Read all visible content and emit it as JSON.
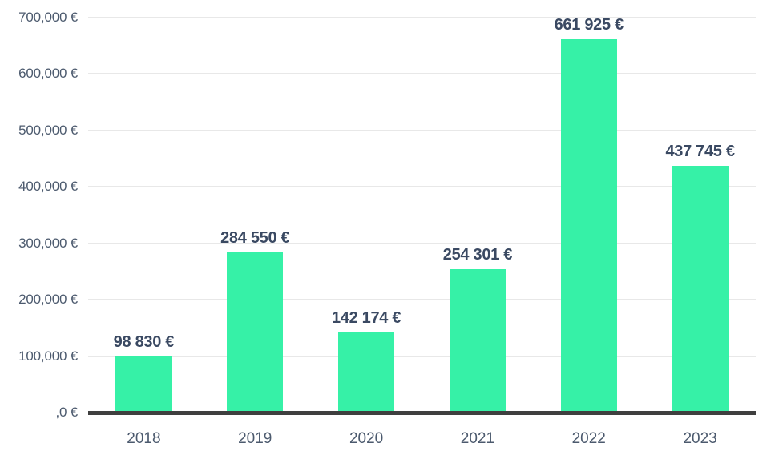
{
  "chart_data": {
    "type": "bar",
    "title": "",
    "xlabel": "",
    "ylabel": "",
    "categories": [
      "2018",
      "2019",
      "2020",
      "2021",
      "2022",
      "2023"
    ],
    "values": [
      98830,
      284550,
      142174,
      254301,
      661925,
      437745
    ],
    "data_labels": [
      "98 830 €",
      "284 550 €",
      "142 174 €",
      "254 301 €",
      "661 925 €",
      "437 745 €"
    ],
    "y_tick_labels": [
      "700,000 €",
      "600,000 €",
      "500,000 €",
      "400,000 €",
      "300,000 €",
      "200,000 €",
      "100,000 €",
      ",0 €"
    ],
    "y_tick_values": [
      700000,
      600000,
      500000,
      400000,
      300000,
      200000,
      100000,
      0
    ],
    "ylim": [
      0,
      700000
    ],
    "currency_symbol": "€",
    "grid": true,
    "legend": false,
    "colors": {
      "bar": "#36F1A7",
      "grid_line": "#E8E8E8",
      "axis_line": "#3F3F3F",
      "tick_label": "#4C5A6E",
      "data_label": "#3A4962",
      "background": "#FFFFFF"
    }
  }
}
